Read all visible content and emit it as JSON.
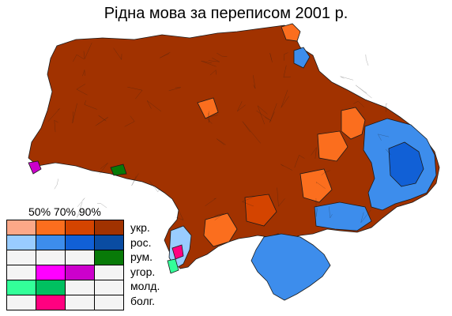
{
  "title": "Рідна мова за переписом 2001 р.",
  "legend": {
    "thresholds_label": "50% 70% 90%",
    "rows": [
      {
        "label": "укр.",
        "colors": [
          "#fca888",
          "#fb6e1e",
          "#d44400",
          "#a13200"
        ]
      },
      {
        "label": "рос.",
        "colors": [
          "#99ccff",
          "#3d8dec",
          "#1160d6",
          "#0a4ca2"
        ]
      },
      {
        "label": "рум.",
        "colors": [
          "#f4f4f4",
          "#f4f4f4",
          "#f4f4f4",
          "#087a08"
        ]
      },
      {
        "label": "угор.",
        "colors": [
          "#f4f4f4",
          "#ff00ff",
          "#cc00cc",
          "#f4f4f4"
        ]
      },
      {
        "label": "молд.",
        "colors": [
          "#33ff99",
          "#00c060",
          "#f4f4f4",
          "#f4f4f4"
        ]
      },
      {
        "label": "болг.",
        "colors": [
          "#f4f4f4",
          "#ff0080",
          "#f4f4f4",
          "#f4f4f4"
        ]
      }
    ]
  },
  "map_colors": {
    "ukr_90": "#a13200",
    "ukr_70": "#d44400",
    "ukr_50": "#fb6e1e",
    "rus_50": "#3d8dec",
    "rus_70": "#1160d6",
    "rus_lt50": "#99ccff",
    "rom_90": "#087a08",
    "hun": "#cc00cc",
    "bul": "#ff0080",
    "mold": "#33ff99",
    "border": "#1a1a1a"
  }
}
